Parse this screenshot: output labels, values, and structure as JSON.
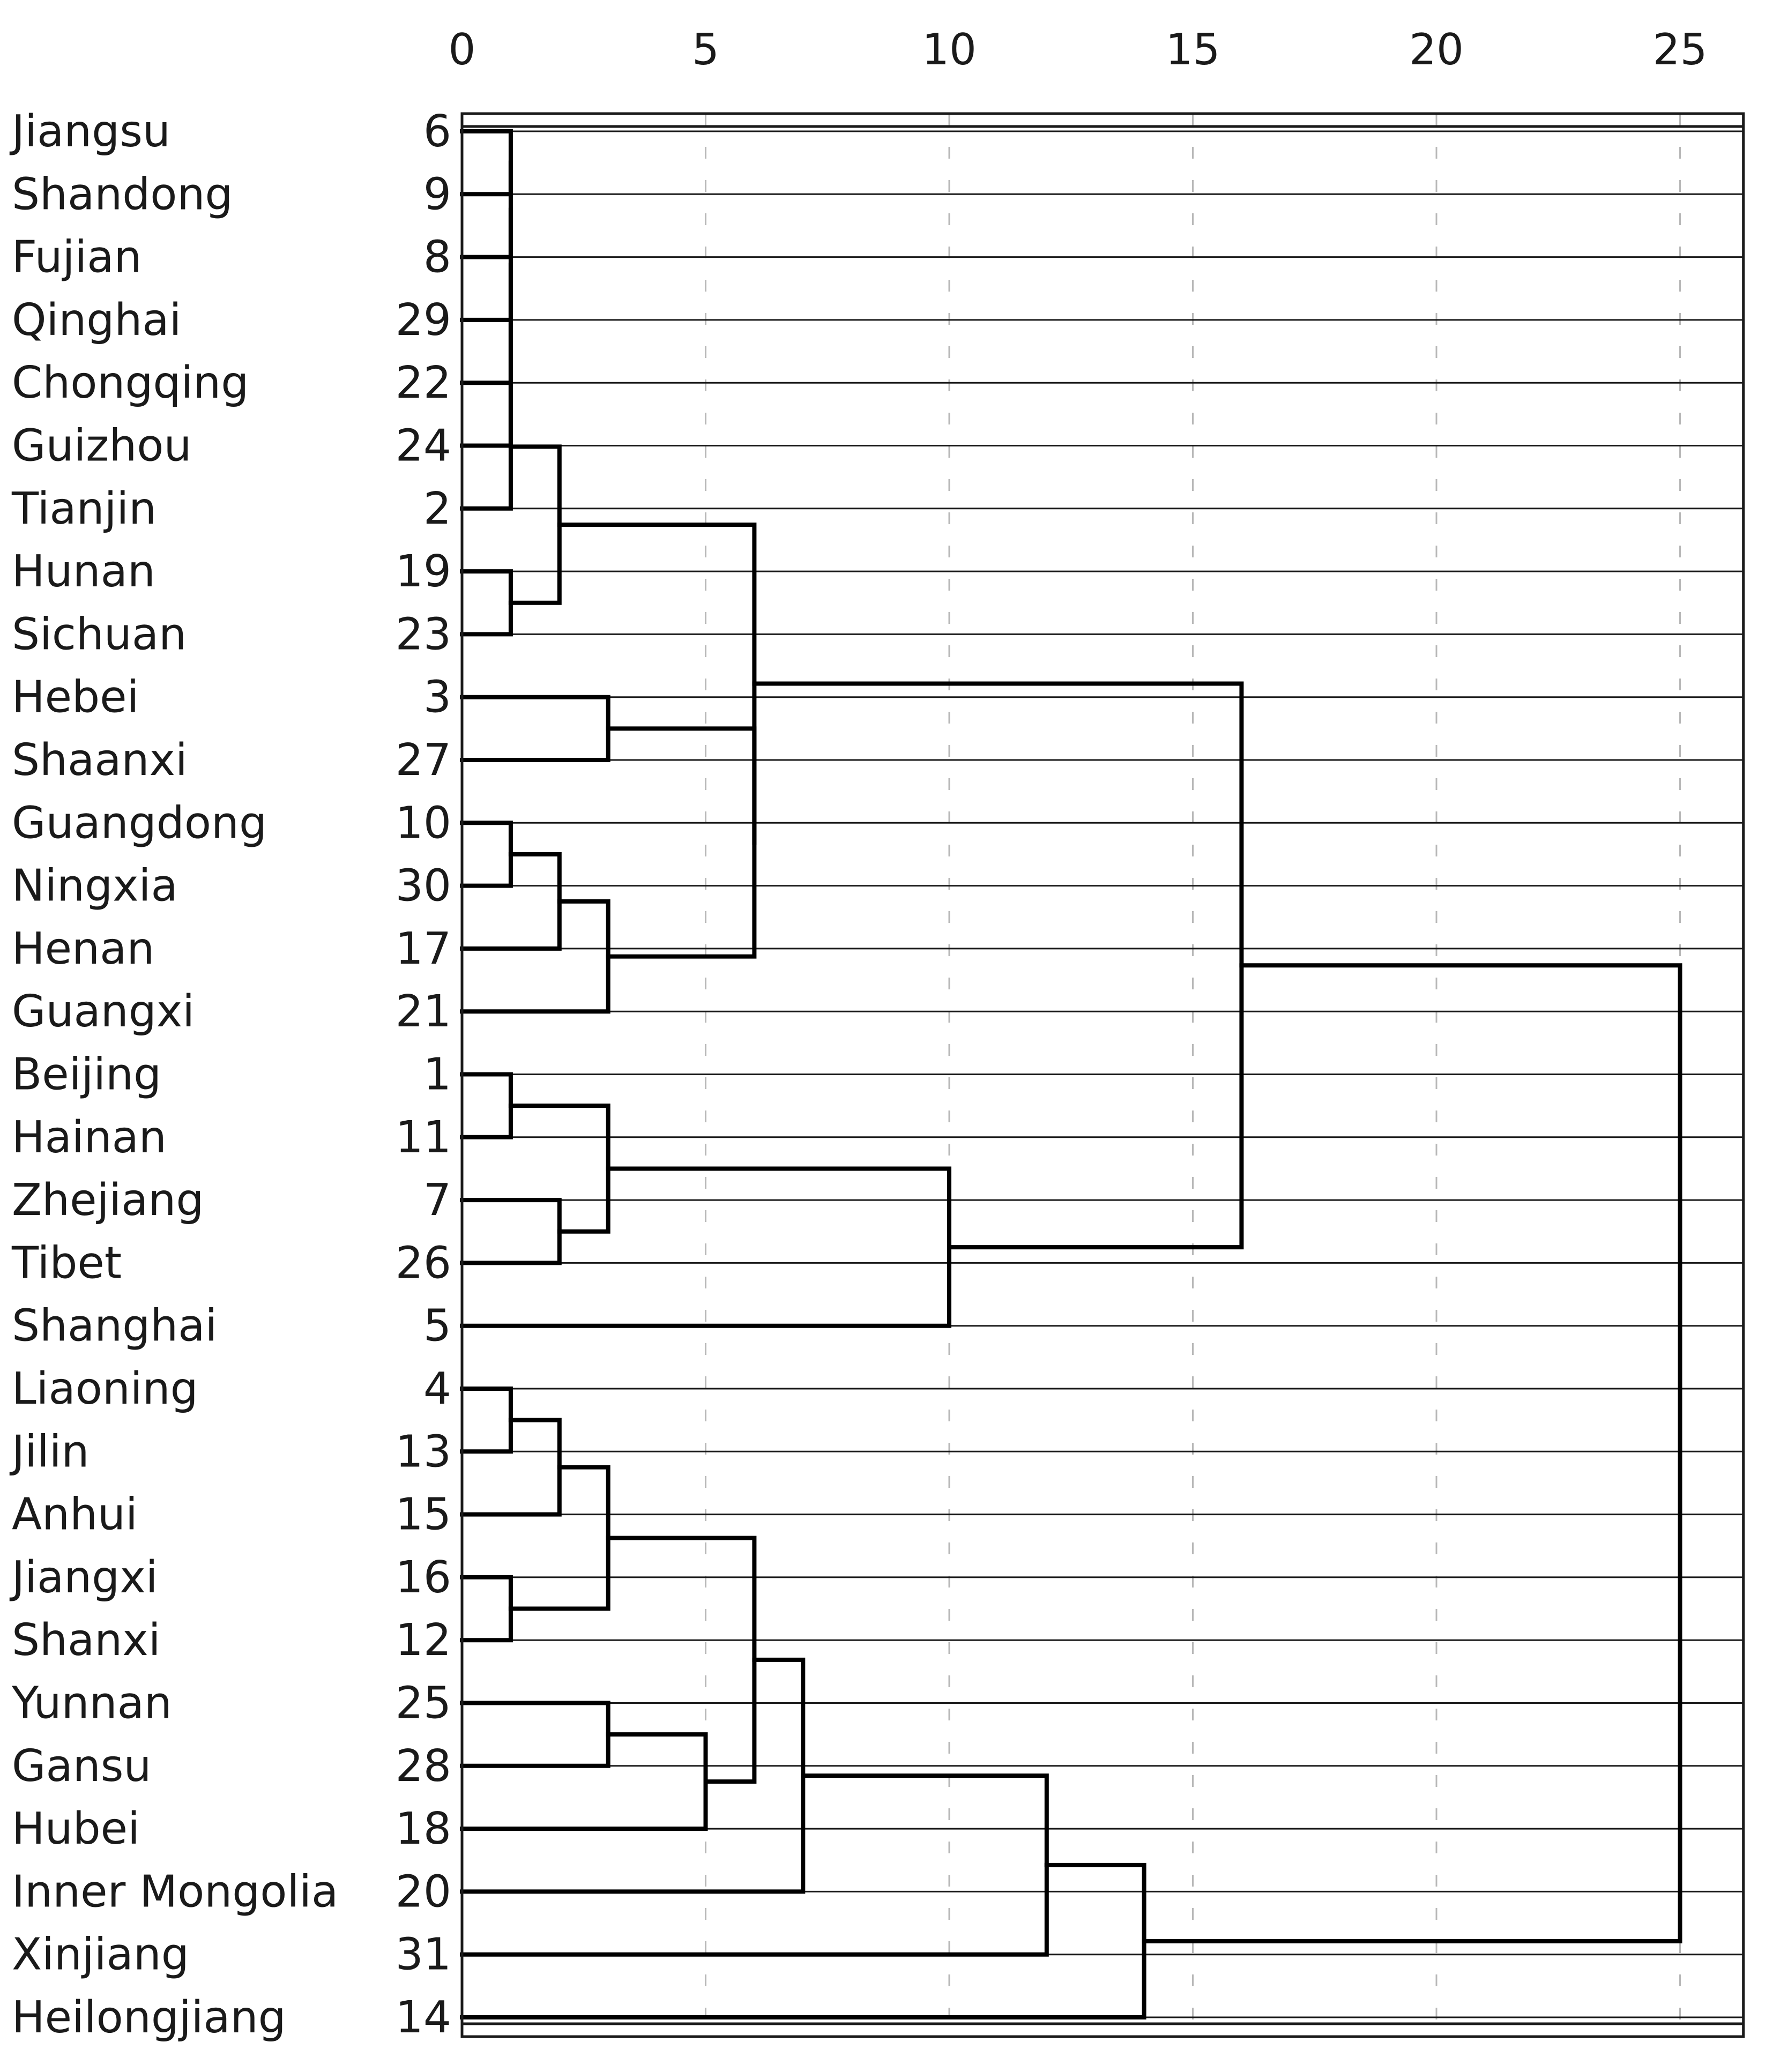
{
  "axis": {
    "min": 0,
    "max": 25,
    "ticks": [
      0,
      5,
      10,
      15,
      20,
      25
    ],
    "scale_end": 26.3
  },
  "rows": [
    {
      "label": "Jiangsu",
      "case": "6"
    },
    {
      "label": "Shandong",
      "case": "9"
    },
    {
      "label": "Fujian",
      "case": "8"
    },
    {
      "label": "Qinghai",
      "case": "29"
    },
    {
      "label": "Chongqing",
      "case": "22"
    },
    {
      "label": "Guizhou",
      "case": "24"
    },
    {
      "label": "Tianjin",
      "case": "2"
    },
    {
      "label": "Hunan",
      "case": "19"
    },
    {
      "label": "Sichuan",
      "case": "23"
    },
    {
      "label": "Hebei",
      "case": "3"
    },
    {
      "label": "Shaanxi",
      "case": "27"
    },
    {
      "label": "Guangdong",
      "case": "10"
    },
    {
      "label": "Ningxia",
      "case": "30"
    },
    {
      "label": "Henan",
      "case": "17"
    },
    {
      "label": "Guangxi",
      "case": "21"
    },
    {
      "label": "Beijing",
      "case": "1"
    },
    {
      "label": "Hainan",
      "case": "11"
    },
    {
      "label": "Zhejiang",
      "case": "7"
    },
    {
      "label": "Tibet",
      "case": "26"
    },
    {
      "label": "Shanghai",
      "case": "5"
    },
    {
      "label": "Liaoning",
      "case": "4"
    },
    {
      "label": "Jilin",
      "case": "13"
    },
    {
      "label": "Anhui",
      "case": "15"
    },
    {
      "label": "Jiangxi",
      "case": "16"
    },
    {
      "label": "Shanxi",
      "case": "12"
    },
    {
      "label": "Yunnan",
      "case": "25"
    },
    {
      "label": "Gansu",
      "case": "28"
    },
    {
      "label": "Hubei",
      "case": "18"
    },
    {
      "label": "Inner Mongolia",
      "case": "20"
    },
    {
      "label": "Xinjiang",
      "case": "31"
    },
    {
      "label": "Heilongjiang",
      "case": "14"
    }
  ],
  "merges": [
    {
      "a": "L0",
      "b": "L1",
      "h": 1
    },
    {
      "a": "N0",
      "b": "L2",
      "h": 1
    },
    {
      "a": "N1",
      "b": "L3",
      "h": 1
    },
    {
      "a": "N2",
      "b": "L4",
      "h": 1
    },
    {
      "a": "N3",
      "b": "L5",
      "h": 1
    },
    {
      "a": "N4",
      "b": "L6",
      "h": 1
    },
    {
      "a": "L7",
      "b": "L8",
      "h": 1
    },
    {
      "a": "N5",
      "b": "N6",
      "h": 2
    },
    {
      "a": "L9",
      "b": "L10",
      "h": 3
    },
    {
      "a": "L11",
      "b": "L12",
      "h": 1
    },
    {
      "a": "N9",
      "b": "L13",
      "h": 2
    },
    {
      "a": "N10",
      "b": "L14",
      "h": 3
    },
    {
      "a": "N8",
      "b": "N11",
      "h": 6
    },
    {
      "a": "N7",
      "b": "N12",
      "h": 6
    },
    {
      "a": "L15",
      "b": "L16",
      "h": 1
    },
    {
      "a": "L17",
      "b": "L18",
      "h": 2
    },
    {
      "a": "N14",
      "b": "N15",
      "h": 3
    },
    {
      "a": "N16",
      "b": "L19",
      "h": 10
    },
    {
      "a": "N13",
      "b": "N17",
      "h": 16
    },
    {
      "a": "L20",
      "b": "L21",
      "h": 1
    },
    {
      "a": "N19",
      "b": "L22",
      "h": 2
    },
    {
      "a": "L23",
      "b": "L24",
      "h": 1
    },
    {
      "a": "N20",
      "b": "N21",
      "h": 3
    },
    {
      "a": "L25",
      "b": "L26",
      "h": 3
    },
    {
      "a": "N23",
      "b": "L27",
      "h": 5
    },
    {
      "a": "N22",
      "b": "N24",
      "h": 6
    },
    {
      "a": "N25",
      "b": "L28",
      "h": 7
    },
    {
      "a": "N26",
      "b": "L29",
      "h": 12
    },
    {
      "a": "N27",
      "b": "L30",
      "h": 14
    },
    {
      "a": "N18",
      "b": "N28",
      "h": 25
    }
  ]
}
